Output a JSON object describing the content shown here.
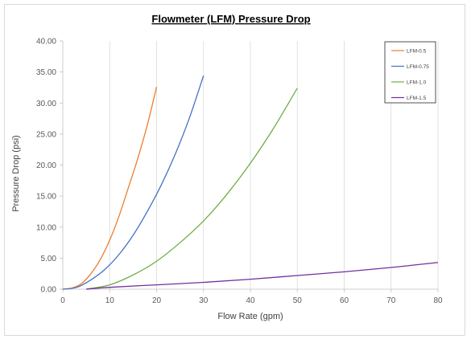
{
  "chart_data": {
    "type": "line",
    "title": "Flowmeter (LFM) Pressure Drop",
    "xlabel": "Flow Rate (gpm)",
    "ylabel": "Pressure Drop (psi)",
    "xlim": [
      0,
      80
    ],
    "ylim": [
      0,
      40
    ],
    "xticks": [
      "0",
      "10",
      "20",
      "30",
      "40",
      "50",
      "60",
      "70",
      "80"
    ],
    "yticks": [
      "0.00",
      "5.00",
      "10.00",
      "15.00",
      "20.00",
      "25.00",
      "30.00",
      "35.00",
      "40.00"
    ],
    "grid": "vertical",
    "legend_position": "top-right",
    "series": [
      {
        "name": "LFM-0.5",
        "color": "#ed7d31",
        "x": [
          0,
          2,
          4,
          6,
          8,
          10,
          12,
          14,
          16,
          18,
          20
        ],
        "y": [
          0,
          0.2,
          0.9,
          2.5,
          4.8,
          7.9,
          11.8,
          16.4,
          21.1,
          26.4,
          32.6
        ]
      },
      {
        "name": "LFM-0.75",
        "color": "#4472c4",
        "x": [
          0,
          3,
          6,
          9,
          12,
          15,
          18,
          21,
          24,
          27,
          30
        ],
        "y": [
          0,
          0.3,
          1.5,
          3.2,
          5.6,
          8.7,
          12.5,
          16.8,
          21.8,
          27.6,
          34.4
        ]
      },
      {
        "name": "LFM-1.0",
        "color": "#70ad47",
        "x": [
          5,
          10,
          15,
          20,
          25,
          30,
          35,
          40,
          45,
          50
        ],
        "y": [
          0,
          0.7,
          2.3,
          4.5,
          7.5,
          11.0,
          15.3,
          20.3,
          26.0,
          32.4
        ]
      },
      {
        "name": "LFM-1.5",
        "color": "#7030a0",
        "x": [
          5,
          10,
          20,
          30,
          40,
          50,
          60,
          70,
          80
        ],
        "y": [
          0,
          0.3,
          0.7,
          1.1,
          1.6,
          2.2,
          2.8,
          3.5,
          4.3
        ]
      }
    ]
  }
}
